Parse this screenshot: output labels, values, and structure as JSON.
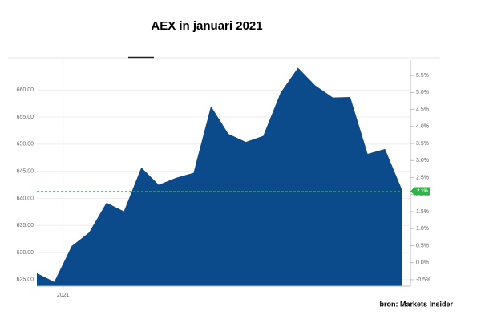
{
  "chart_data": {
    "type": "area",
    "title": "AEX in januari 2021",
    "source": "bron: Markets Insider",
    "categories": [
      null,
      "2021",
      null,
      null,
      null,
      null,
      null,
      null,
      null,
      null,
      null,
      null,
      null,
      null,
      null,
      null,
      null,
      null,
      null,
      null,
      null,
      null
    ],
    "values": [
      626.2,
      624.6,
      631.2,
      633.7,
      639.2,
      637.6,
      645.7,
      642.5,
      643.8,
      644.7,
      657.0,
      651.9,
      650.4,
      651.5,
      659.5,
      664.1,
      660.8,
      658.6,
      658.7,
      648.2,
      649.1,
      641.4
    ],
    "color": "#0b4a8b",
    "ylim": [
      623.8,
      665.5
    ],
    "yticks": [
      {
        "value": 625,
        "label": "625.00"
      },
      {
        "value": 630,
        "label": "630.00"
      },
      {
        "value": 635,
        "label": "635.00"
      },
      {
        "value": 640,
        "label": "640.00"
      },
      {
        "value": 645,
        "label": "645.00"
      },
      {
        "value": 650,
        "label": "650.00"
      },
      {
        "value": 655,
        "label": "655.00"
      },
      {
        "value": 660,
        "label": "660.00"
      }
    ],
    "y2lim": [
      -0.69,
      5.95
    ],
    "y2ticks": [
      {
        "value": -0.5,
        "label": "-0.5%"
      },
      {
        "value": 0,
        "label": "0.0%"
      },
      {
        "value": 0.5,
        "label": "0.5%"
      },
      {
        "value": 1,
        "label": "1.0%"
      },
      {
        "value": 1.5,
        "label": "1.5%"
      },
      {
        "value": 2,
        "label": "2.0%"
      },
      {
        "value": 2.5,
        "label": "2.5%"
      },
      {
        "value": 3,
        "label": "3.0%"
      },
      {
        "value": 3.5,
        "label": "3.5%"
      },
      {
        "value": 4,
        "label": "4.0%"
      },
      {
        "value": 4.5,
        "label": "4.5%"
      },
      {
        "value": 5,
        "label": "5.0%"
      },
      {
        "value": 5.5,
        "label": "5.5%"
      }
    ],
    "current_change": {
      "value": 2.1,
      "label": "2.1%",
      "color": "#2fb34a"
    },
    "grid": true
  }
}
